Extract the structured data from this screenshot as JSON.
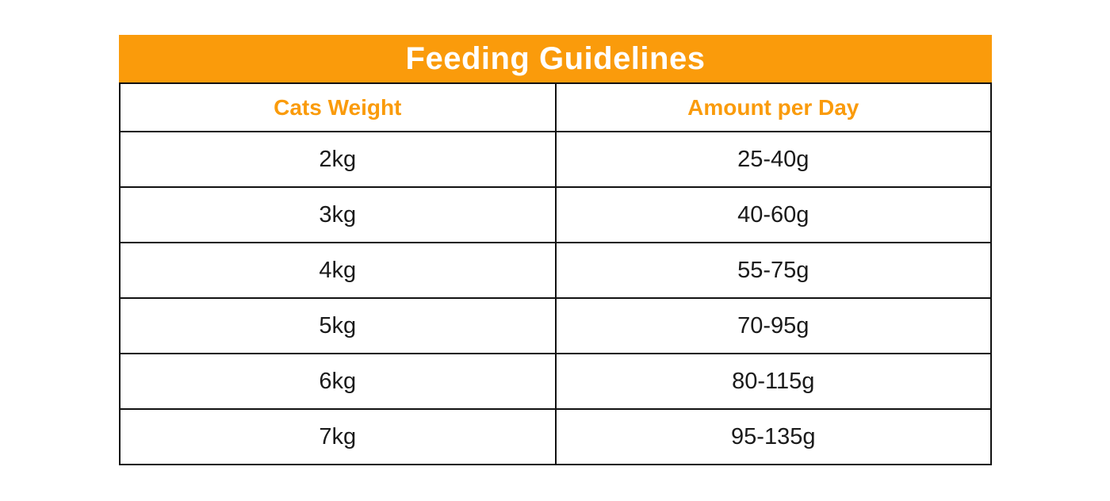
{
  "title": "Feeding Guidelines",
  "colors": {
    "accent_orange": "#FA9B0B",
    "border_black": "#111111",
    "title_text": "#FFFFFF",
    "cell_text": "#1A1A1A",
    "page_background": "#FFFFFF"
  },
  "table": {
    "columns": [
      "Cats Weight",
      "Amount per Day"
    ],
    "rows": [
      [
        "2kg",
        "25-40g"
      ],
      [
        "3kg",
        "40-60g"
      ],
      [
        "4kg",
        "55-75g"
      ],
      [
        "5kg",
        "70-95g"
      ],
      [
        "6kg",
        "80-115g"
      ],
      [
        "7kg",
        "95-135g"
      ]
    ]
  },
  "chart_data": {
    "type": "table",
    "title": "Feeding Guidelines",
    "columns": [
      "Cats Weight",
      "Amount per Day"
    ],
    "rows": [
      {
        "cats_weight": "2kg",
        "amount_per_day": "25-40g"
      },
      {
        "cats_weight": "3kg",
        "amount_per_day": "40-60g"
      },
      {
        "cats_weight": "4kg",
        "amount_per_day": "55-75g"
      },
      {
        "cats_weight": "5kg",
        "amount_per_day": "70-95g"
      },
      {
        "cats_weight": "6kg",
        "amount_per_day": "80-115g"
      },
      {
        "cats_weight": "7kg",
        "amount_per_day": "95-135g"
      }
    ],
    "layout": {
      "title_bar_background": "#FA9B0B",
      "header_text_color": "#FA9B0B",
      "grid": "full-borders",
      "column_split": "50/50"
    }
  }
}
